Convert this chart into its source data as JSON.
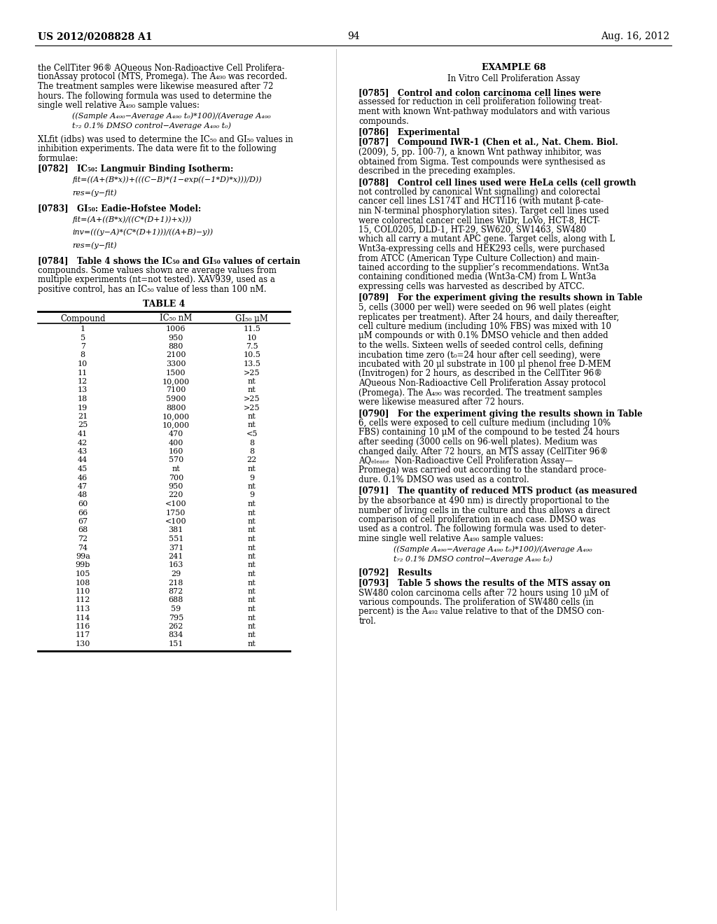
{
  "page_number": "94",
  "patent_number": "US 2012/0208828 A1",
  "date": "Aug. 16, 2012",
  "bg_color": "#ffffff",
  "text_color": "#000000",
  "left_column": {
    "intro_text": [
      "the CellTiter 96® AQueous Non-Radioactive Cell Prolifera-",
      "tionAssay protocol (MTS, Promega). The A₄₉₀ was recorded.",
      "The treatment samples were likewise measured after 72",
      "hours. The following formula was used to determine the",
      "single well relative A₄₉₀ sample values:"
    ],
    "formula1_lines": [
      "((Sample A₄₉₀−Average A₄₉₀ t₀)*100)/(Average A₄₉₀",
      "t₇₂ 0.1% DMSO control−Average A₄₉₀ t₀)"
    ],
    "xlfit_text": [
      "XLfit (idbs) was used to determine the IC₅₀ and GI₅₀ values in",
      "inhibition experiments. The data were fit to the following",
      "formulae:"
    ],
    "para0782": "[0782]   IC₅₀: Langmuir Binding Isotherm:",
    "formula2_lines": [
      "fit=((A+(B*x))+(((C−B)*(1−exp((−1*D)*x)))/D))"
    ],
    "formula2b": "res=(y−fit)",
    "para0783": "[0783]   GI₅₀: Eadie-Hofstee Model:",
    "formula3_lines": [
      "fit=(A+((B*x)/((C*(D+1))+x)))"
    ],
    "formula3b": "inv=(((y−A)*(C*(D+1)))/((A+B)−y))",
    "formula3c": "res=(y−fit)",
    "para0784": "[0784]   Table 4 shows the IC₅₀ and GI₅₀ values of certain",
    "para0784_cont": [
      "compounds. Some values shown are average values from",
      "multiple experiments (nt=not tested). XAV939, used as a",
      "positive control, has an IC₅₀ value of less than 100 nM."
    ]
  },
  "right_column": {
    "example_title": "EXAMPLE 68",
    "example_subtitle": "In Vitro Cell Proliferation Assay",
    "para0785": "[0785]   Control and colon carcinoma cell lines were",
    "para0785_cont": [
      "assessed for reduction in cell proliferation following treat-",
      "ment with known Wnt-pathway modulators and with various",
      "compounds."
    ],
    "para0786": "[0786]   Experimental",
    "para0787": "[0787]   Compound IWR-1 (Chen et al., Nat. Chem. Biol.",
    "para0787_cont": [
      "(2009), 5, pp. 100-7), a known Wnt pathway inhibitor, was",
      "obtained from Sigma. Test compounds were synthesised as",
      "described in the preceding examples."
    ],
    "para0788": "[0788]   Control cell lines used were HeLa cells (cell growth",
    "para0788_cont": [
      "not controlled by canonical Wnt signalling) and colorectal",
      "cancer cell lines LS174T and HCT116 (with mutant β-cate-",
      "nin N-terminal phosphorylation sites). Target cell lines used",
      "were colorectal cancer cell lines WiDr, LoVo, HCT-8, HCT-",
      "15, COL0205, DLD-1, HT-29, SW620, SW1463, SW480",
      "which all carry a mutant APC gene. Target cells, along with L",
      "Wnt3a-expressing cells and HEK293 cells, were purchased",
      "from ATCC (American Type Culture Collection) and main-",
      "tained according to the supplier’s recommendations. Wnt3a",
      "containing conditioned media (Wnt3a-CM) from L Wnt3a",
      "expressing cells was harvested as described by ATCC."
    ],
    "para0789": "[0789]   For the experiment giving the results shown in Table",
    "para0789_cont": [
      "5, cells (3000 per well) were seeded on 96 well plates (eight",
      "replicates per treatment). After 24 hours, and daily thereafter,",
      "cell culture medium (including 10% FBS) was mixed with 10",
      "μM compounds or with 0.1% DMSO vehicle and then added",
      "to the wells. Sixteen wells of seeded control cells, defining",
      "incubation time zero (t₀=24 hour after cell seeding), were",
      "incubated with 20 μl substrate in 100 μl phenol free D-MEM",
      "(Invitrogen) for 2 hours, as described in the CellTiter 96®",
      "AQueous Non-Radioactive Cell Proliferation Assay protocol",
      "(Promega). The A₄₉₀ was recorded. The treatment samples",
      "were likewise measured after 72 hours."
    ],
    "para0790": "[0790]   For the experiment giving the results shown in Table",
    "para0790_cont": [
      "6, cells were exposed to cell culture medium (including 10%",
      "FBS) containing 10 μM of the compound to be tested 24 hours",
      "after seeding (3000 cells on 96-well plates). Medium was",
      "changed daily. After 72 hours, an MTS assay (CellTiter 96®",
      "AQₑₗₑₐₙₑ  Non-Radioactive Cell Proliferation Assay—",
      "Promega) was carried out according to the standard proce-",
      "dure. 0.1% DMSO was used as a control."
    ],
    "para0791": "[0791]   The quantity of reduced MTS product (as measured",
    "para0791_cont": [
      "by the absorbance at 490 nm) is directly proportional to the",
      "number of living cells in the culture and thus allows a direct",
      "comparison of cell proliferation in each case. DMSO was",
      "used as a control. The following formula was used to deter-",
      "mine single well relative A₄₉₀ sample values:"
    ],
    "formula4_lines": [
      "((Sample A₄₉₀−Average A₄₉₀ t₀)*100)/(Average A₄₉₀",
      "t₇₂ 0.1% DMSO control−Average A₄₉₀ t₀)"
    ],
    "para0792": "[0792]   Results",
    "para0793": "[0793]   Table 5 shows the results of the MTS assay on",
    "para0793_cont": [
      "SW480 colon carcinoma cells after 72 hours using 10 μM of",
      "various compounds. The proliferation of SW480 cells (in",
      "percent) is the A₄₉₂ value relative to that of the DMSO con-",
      "trol."
    ]
  },
  "table4": {
    "title": "TABLE 4",
    "headers": [
      "Compound",
      "IC₅₀ nM",
      "GI₅₀ μM"
    ],
    "rows": [
      [
        "1",
        "1006",
        "11.5"
      ],
      [
        "5",
        "950",
        "10"
      ],
      [
        "7",
        "880",
        "7.5"
      ],
      [
        "8",
        "2100",
        "10.5"
      ],
      [
        "10",
        "3300",
        "13.5"
      ],
      [
        "11",
        "1500",
        ">25"
      ],
      [
        "12",
        "10,000",
        "nt"
      ],
      [
        "13",
        "7100",
        "nt"
      ],
      [
        "18",
        "5900",
        ">25"
      ],
      [
        "19",
        "8800",
        ">25"
      ],
      [
        "21",
        "10,000",
        "nt"
      ],
      [
        "25",
        "10,000",
        "nt"
      ],
      [
        "41",
        "470",
        "<5"
      ],
      [
        "42",
        "400",
        "8"
      ],
      [
        "43",
        "160",
        "8"
      ],
      [
        "44",
        "570",
        "22"
      ],
      [
        "45",
        "nt",
        "nt"
      ],
      [
        "46",
        "700",
        "9"
      ],
      [
        "47",
        "950",
        "nt"
      ],
      [
        "48",
        "220",
        "9"
      ],
      [
        "60",
        "<100",
        "nt"
      ],
      [
        "66",
        "1750",
        "nt"
      ],
      [
        "67",
        "<100",
        "nt"
      ],
      [
        "68",
        "381",
        "nt"
      ],
      [
        "72",
        "551",
        "nt"
      ],
      [
        "74",
        "371",
        "nt"
      ],
      [
        "99a",
        "241",
        "nt"
      ],
      [
        "99b",
        "163",
        "nt"
      ],
      [
        "105",
        "29",
        "nt"
      ],
      [
        "108",
        "218",
        "nt"
      ],
      [
        "110",
        "872",
        "nt"
      ],
      [
        "112",
        "688",
        "nt"
      ],
      [
        "113",
        "59",
        "nt"
      ],
      [
        "114",
        "795",
        "nt"
      ],
      [
        "116",
        "262",
        "nt"
      ],
      [
        "117",
        "834",
        "nt"
      ],
      [
        "130",
        "151",
        "nt"
      ]
    ]
  }
}
